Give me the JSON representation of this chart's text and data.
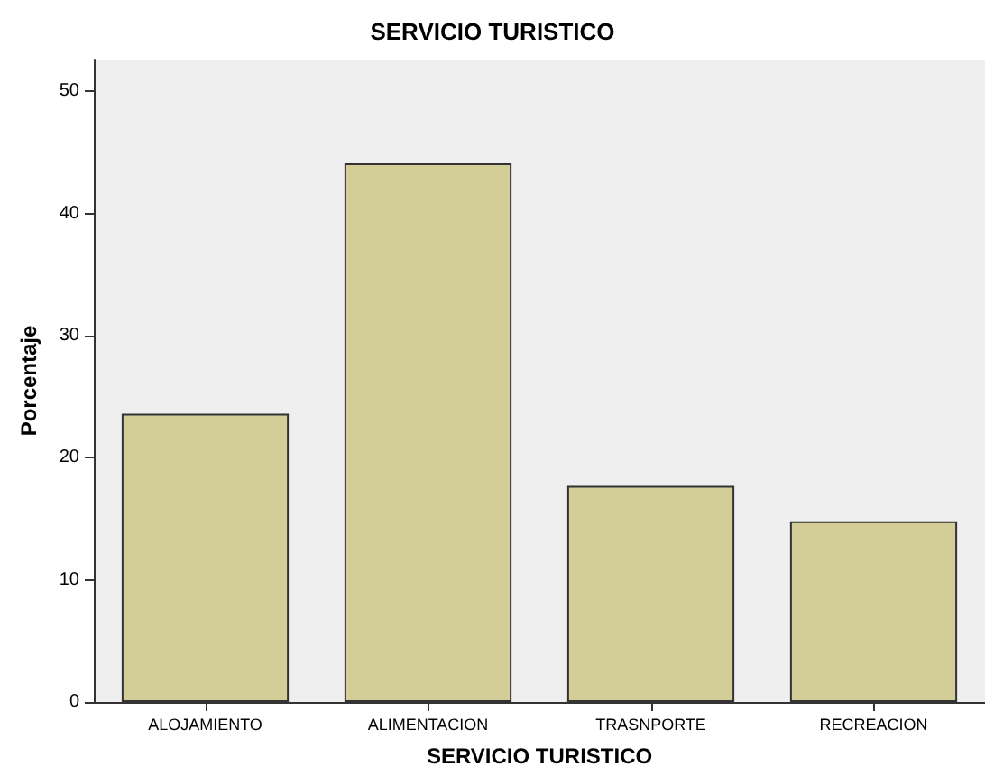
{
  "chart_data": {
    "type": "bar",
    "title": "SERVICIO TURISTICO",
    "xlabel": "SERVICIO TURISTICO",
    "ylabel": "Porcentaje",
    "categories": [
      "ALOJAMIENTO",
      "ALIMENTACION",
      "TRASNPORTE",
      "RECREACION"
    ],
    "values": [
      23.6,
      44.1,
      17.7,
      14.8
    ],
    "color": "#d3ce97",
    "ylim": [
      0,
      52.6
    ],
    "yticks": [
      0,
      10,
      20,
      30,
      40,
      50
    ],
    "grid": false
  }
}
